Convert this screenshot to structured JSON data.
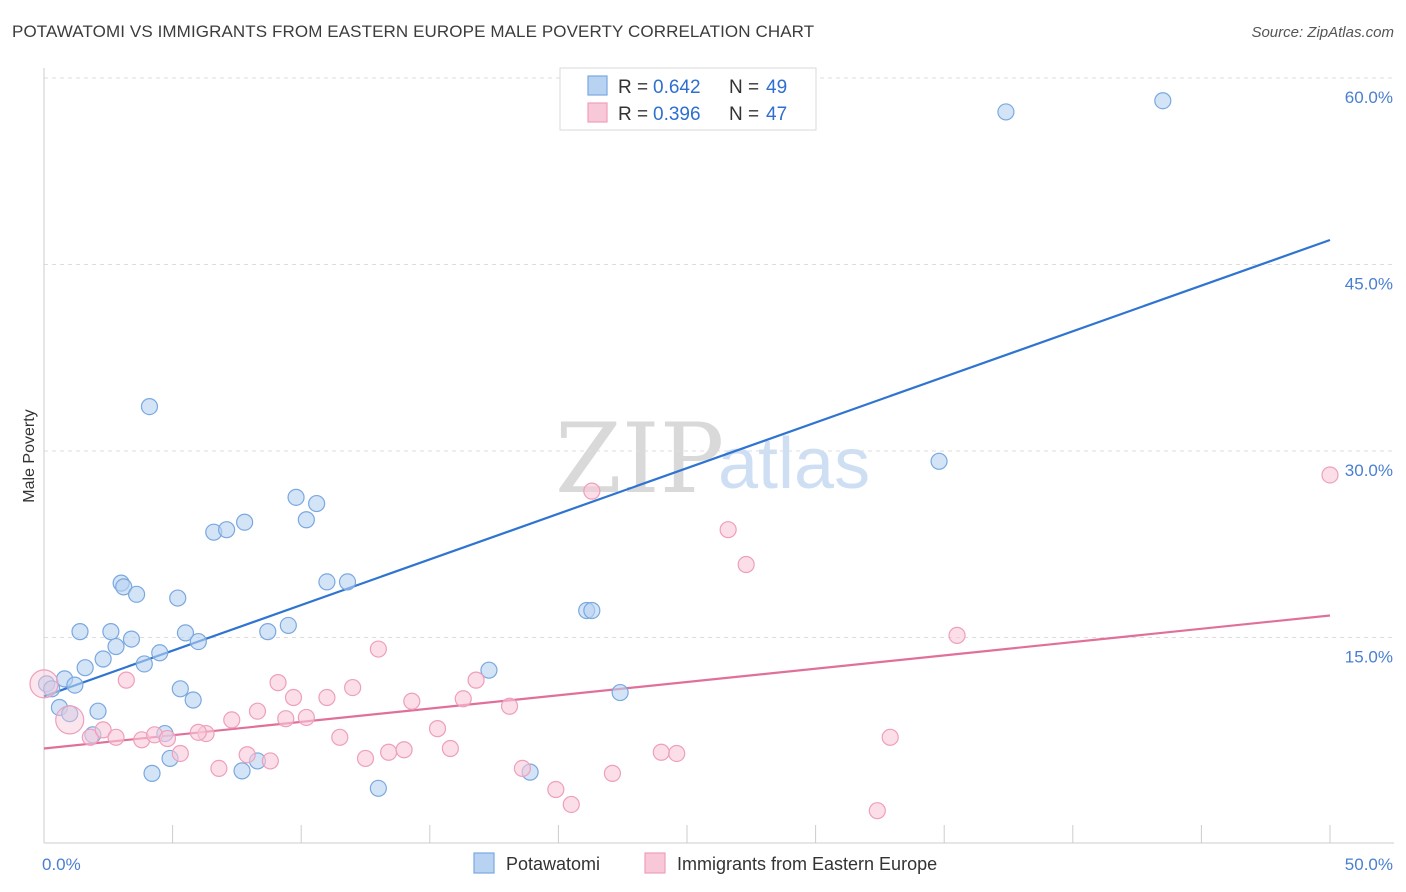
{
  "title": "POTAWATOMI VS IMMIGRANTS FROM EASTERN EUROPE MALE POVERTY CORRELATION CHART",
  "source": "Source: ZipAtlas.com",
  "watermark": {
    "zip": "ZIP",
    "atlas": "atlas"
  },
  "colors": {
    "blue_fill": "#b8d2f2",
    "blue_stroke": "#7aa8e0",
    "blue_line": "#2f74d0",
    "pink_fill": "#f8c8d8",
    "pink_stroke": "#ee9fbc",
    "pink_line": "#e0709a",
    "grid": "#dddddd",
    "axis": "#cccccc"
  },
  "legend": {
    "rows": [
      {
        "r_label": "R = ",
        "r_value": "0.642",
        "n_label": "N = ",
        "n_value": "49",
        "series": "blue"
      },
      {
        "r_label": "R = ",
        "r_value": "0.396",
        "n_label": "N = ",
        "n_value": "47",
        "series": "pink"
      }
    ]
  },
  "chart_data": {
    "type": "scatter",
    "title": "POTAWATOMI VS IMMIGRANTS FROM EASTERN EUROPE MALE POVERTY CORRELATION CHART",
    "xlabel": "",
    "ylabel": "Male Poverty",
    "xlim": [
      0,
      50
    ],
    "ylim": [
      0,
      60
    ],
    "x_tick_labels": [
      {
        "value": 0,
        "label": "0.0%"
      },
      {
        "value": 50,
        "label": "50.0%"
      }
    ],
    "y_tick_labels": [
      {
        "value": 15,
        "label": "15.0%"
      },
      {
        "value": 30,
        "label": "30.0%"
      },
      {
        "value": 45,
        "label": "45.0%"
      },
      {
        "value": 60,
        "label": "60.0%"
      }
    ],
    "series": [
      {
        "name": "Potawatomi",
        "color": "blue",
        "trend": {
          "x": [
            0,
            50
          ],
          "y": [
            11.8,
            48.5
          ]
        },
        "points": [
          {
            "x": 0.1,
            "y": 12.8
          },
          {
            "x": 0.3,
            "y": 12.4
          },
          {
            "x": 0.6,
            "y": 10.9
          },
          {
            "x": 0.8,
            "y": 13.2
          },
          {
            "x": 1.0,
            "y": 10.4
          },
          {
            "x": 1.2,
            "y": 12.7
          },
          {
            "x": 1.4,
            "y": 17.0
          },
          {
            "x": 1.6,
            "y": 14.1
          },
          {
            "x": 1.9,
            "y": 8.7
          },
          {
            "x": 2.1,
            "y": 10.6
          },
          {
            "x": 2.3,
            "y": 14.8
          },
          {
            "x": 2.6,
            "y": 17.0
          },
          {
            "x": 2.8,
            "y": 15.8
          },
          {
            "x": 3.0,
            "y": 20.9
          },
          {
            "x": 3.1,
            "y": 20.6
          },
          {
            "x": 3.4,
            "y": 16.4
          },
          {
            "x": 3.6,
            "y": 20.0
          },
          {
            "x": 3.9,
            "y": 14.4
          },
          {
            "x": 4.1,
            "y": 35.1
          },
          {
            "x": 4.2,
            "y": 5.6
          },
          {
            "x": 4.5,
            "y": 15.3
          },
          {
            "x": 4.7,
            "y": 8.8
          },
          {
            "x": 4.9,
            "y": 6.8
          },
          {
            "x": 5.2,
            "y": 19.7
          },
          {
            "x": 5.3,
            "y": 12.4
          },
          {
            "x": 5.5,
            "y": 16.9
          },
          {
            "x": 5.8,
            "y": 11.5
          },
          {
            "x": 6.0,
            "y": 16.2
          },
          {
            "x": 6.6,
            "y": 25.0
          },
          {
            "x": 7.1,
            "y": 25.2
          },
          {
            "x": 7.7,
            "y": 5.8
          },
          {
            "x": 7.8,
            "y": 25.8
          },
          {
            "x": 8.3,
            "y": 6.6
          },
          {
            "x": 8.7,
            "y": 17.0
          },
          {
            "x": 9.5,
            "y": 17.5
          },
          {
            "x": 9.8,
            "y": 27.8
          },
          {
            "x": 10.2,
            "y": 26.0
          },
          {
            "x": 10.6,
            "y": 27.3
          },
          {
            "x": 11.0,
            "y": 21.0
          },
          {
            "x": 11.8,
            "y": 21.0
          },
          {
            "x": 13.0,
            "y": 4.4
          },
          {
            "x": 17.3,
            "y": 13.9
          },
          {
            "x": 18.9,
            "y": 5.7
          },
          {
            "x": 21.1,
            "y": 18.7
          },
          {
            "x": 21.3,
            "y": 18.7
          },
          {
            "x": 22.4,
            "y": 12.1
          },
          {
            "x": 34.8,
            "y": 30.7
          },
          {
            "x": 37.4,
            "y": 58.8
          },
          {
            "x": 43.5,
            "y": 59.7
          }
        ]
      },
      {
        "name": "Immigrants from Eastern Europe",
        "color": "pink",
        "trend": {
          "x": [
            0,
            50
          ],
          "y": [
            7.6,
            18.3
          ]
        },
        "points": [
          {
            "x": 0.0,
            "y": 12.8,
            "size": "large"
          },
          {
            "x": 1.0,
            "y": 9.9,
            "size": "large"
          },
          {
            "x": 1.8,
            "y": 8.5
          },
          {
            "x": 2.3,
            "y": 9.1
          },
          {
            "x": 2.8,
            "y": 8.5
          },
          {
            "x": 3.2,
            "y": 13.1
          },
          {
            "x": 3.8,
            "y": 8.3
          },
          {
            "x": 4.3,
            "y": 8.7
          },
          {
            "x": 4.8,
            "y": 8.4
          },
          {
            "x": 5.3,
            "y": 7.2
          },
          {
            "x": 6.3,
            "y": 8.8
          },
          {
            "x": 6.8,
            "y": 6.0
          },
          {
            "x": 7.3,
            "y": 9.9
          },
          {
            "x": 7.9,
            "y": 7.1
          },
          {
            "x": 8.3,
            "y": 10.6
          },
          {
            "x": 8.8,
            "y": 6.6
          },
          {
            "x": 9.1,
            "y": 12.9
          },
          {
            "x": 9.7,
            "y": 11.7
          },
          {
            "x": 10.2,
            "y": 10.1
          },
          {
            "x": 11.0,
            "y": 11.7
          },
          {
            "x": 11.5,
            "y": 8.5
          },
          {
            "x": 12.0,
            "y": 12.5
          },
          {
            "x": 12.5,
            "y": 6.8
          },
          {
            "x": 13.0,
            "y": 15.6
          },
          {
            "x": 13.4,
            "y": 7.3
          },
          {
            "x": 14.0,
            "y": 7.5
          },
          {
            "x": 14.3,
            "y": 11.4
          },
          {
            "x": 15.3,
            "y": 9.2
          },
          {
            "x": 15.8,
            "y": 7.6
          },
          {
            "x": 16.3,
            "y": 11.6
          },
          {
            "x": 16.8,
            "y": 13.1
          },
          {
            "x": 18.1,
            "y": 11.0
          },
          {
            "x": 18.6,
            "y": 6.0
          },
          {
            "x": 19.9,
            "y": 4.3
          },
          {
            "x": 20.5,
            "y": 3.1
          },
          {
            "x": 21.3,
            "y": 28.3
          },
          {
            "x": 22.1,
            "y": 5.6
          },
          {
            "x": 24.0,
            "y": 7.3
          },
          {
            "x": 24.6,
            "y": 7.2
          },
          {
            "x": 26.6,
            "y": 25.2
          },
          {
            "x": 27.3,
            "y": 22.4
          },
          {
            "x": 32.4,
            "y": 2.6
          },
          {
            "x": 32.9,
            "y": 8.5
          },
          {
            "x": 35.5,
            "y": 16.7
          },
          {
            "x": 50.0,
            "y": 29.6
          },
          {
            "x": 6.0,
            "y": 8.9
          },
          {
            "x": 9.4,
            "y": 10.0
          }
        ]
      }
    ]
  }
}
